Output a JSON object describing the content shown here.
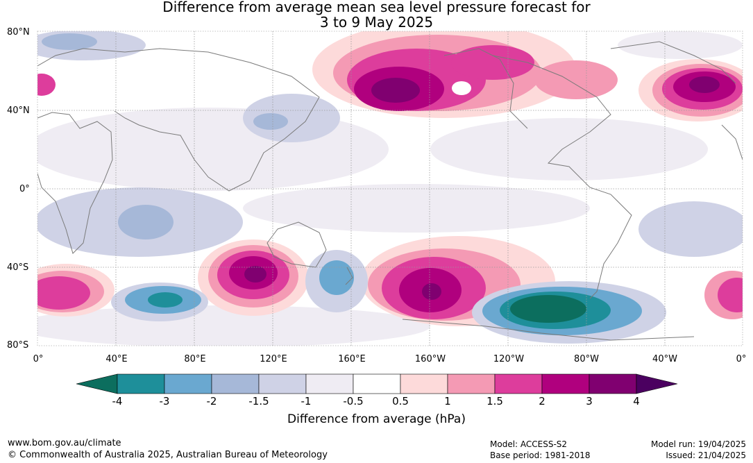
{
  "title": {
    "line1": "Difference from average mean sea level pressure forecast for",
    "line2": "3 to 9 May 2025"
  },
  "map": {
    "lat_labels": [
      "80°N",
      "40°N",
      "0°",
      "40°S",
      "80°S"
    ],
    "lon_labels": [
      "0°",
      "40°E",
      "80°E",
      "120°E",
      "160°E",
      "160°W",
      "120°W",
      "80°W",
      "40°W",
      "0°"
    ],
    "grid": true,
    "icons": [
      "coastline-outline"
    ]
  },
  "colorbar": {
    "title": "Difference from average (hPa)",
    "ticks": [
      "-4",
      "-3",
      "-2",
      "-1.5",
      "-1",
      "-0.5",
      "0.5",
      "1",
      "1.5",
      "2",
      "3",
      "4"
    ],
    "colors": [
      "#0c6e5e",
      "#1e8f9a",
      "#6aa8d0",
      "#a6b8d8",
      "#cfd2e6",
      "#efecf3",
      "#ffffff",
      "#fddada",
      "#f49ab4",
      "#dd3d9c",
      "#b0007e",
      "#800070",
      "#4b0060"
    ]
  },
  "footer": {
    "url": "www.bom.gov.au/climate",
    "copyright": "© Commonwealth of Australia 2025, Australian Bureau of Meteorology",
    "model": "Model: ACCESS-S2",
    "base_period": "Base period: 1981-2018",
    "model_run": "Model run: 19/04/2025",
    "issued": "Issued: 21/04/2025"
  }
}
